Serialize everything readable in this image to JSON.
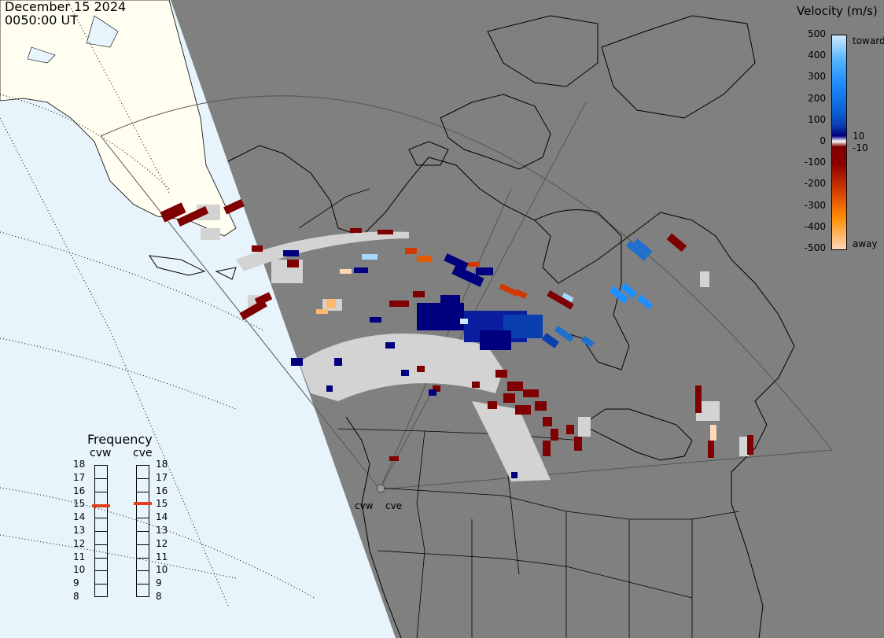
{
  "header": {
    "date": "December 15 2024",
    "time": "0050:00 UT"
  },
  "colorbar": {
    "title": "Velocity (m/s)",
    "ticks": [
      "500",
      "400",
      "300",
      "200",
      "100",
      "0",
      "-100",
      "-200",
      "-300",
      "-400",
      "-500"
    ],
    "ticks_values": [
      500,
      400,
      300,
      200,
      100,
      0,
      -100,
      -200,
      -300,
      -400,
      -500
    ],
    "small_labels": [
      "10",
      "-10"
    ],
    "toward_label": "toward",
    "away_label": "away",
    "colors": {
      "toward_light": "#cde8ff",
      "toward_mid": "#1f8fff",
      "toward_deep": "#0a3fb0",
      "toward_dark": "#00007f",
      "zero": "#ffffff",
      "away_dark": "#7f0000",
      "away_mid": "#d03a00",
      "away_bright": "#ff8c00",
      "away_light": "#ffd8b8"
    }
  },
  "frequency": {
    "title": "Frequency",
    "radars": [
      {
        "name": "cvw",
        "value_mhz": 14.9
      },
      {
        "name": "cve",
        "value_mhz": 15.1
      }
    ],
    "scale": [
      "18",
      "17",
      "16",
      "15",
      "14",
      "13",
      "12",
      "11",
      "10",
      "9",
      "8"
    ],
    "indicator_color": "#e0401a"
  },
  "map": {
    "radar_labels": [
      "cvw",
      "cve"
    ],
    "ground_scatter_color": "#d3d3d3",
    "night_color": "#808080",
    "day_land_color": "#fffef0",
    "day_ocean_color": "#e8f4fb"
  }
}
